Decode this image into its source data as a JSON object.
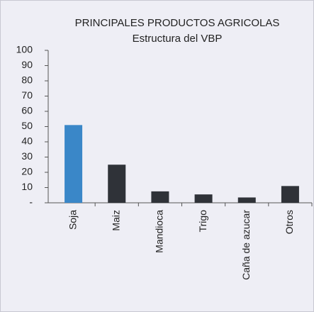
{
  "chart_data": {
    "type": "bar",
    "title": "PRINCIPALES PRODUCTOS AGRICOLAS",
    "subtitle": "Estructura del VBP",
    "categories": [
      "Soja",
      "Maiz",
      "Mandioca",
      "Trigo",
      "Caña de azucar",
      "Otros"
    ],
    "values": [
      51,
      25,
      7.5,
      5.5,
      3.5,
      11
    ],
    "colors": [
      "#3a87c8",
      "#2f3238",
      "#2f3238",
      "#2f3238",
      "#2f3238",
      "#2f3238"
    ],
    "ylim": [
      0,
      100
    ],
    "yticks": [
      {
        "value": 0,
        "label": "-"
      },
      10,
      20,
      30,
      40,
      50,
      60,
      70,
      80,
      90,
      100
    ]
  }
}
